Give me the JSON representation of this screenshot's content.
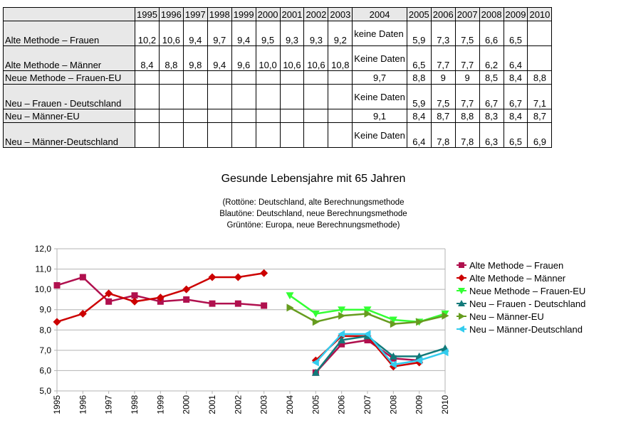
{
  "table": {
    "years": [
      "1995",
      "1996",
      "1997",
      "1998",
      "1999",
      "2000",
      "2001",
      "2002",
      "2003",
      "2004",
      "2005",
      "2006",
      "2007",
      "2008",
      "2009",
      "2010"
    ],
    "rows": [
      {
        "label": "Alte Methode – Frauen",
        "cells": [
          "10,2",
          "10,6",
          "9,4",
          "9,7",
          "9,4",
          "9,5",
          "9,3",
          "9,3",
          "9,2",
          "keine Daten",
          "5,9",
          "7,3",
          "7,5",
          "6,6",
          "6,5",
          ""
        ]
      },
      {
        "label": "Alte Methode – Männer",
        "cells": [
          "8,4",
          "8,8",
          "9,8",
          "9,4",
          "9,6",
          "10,0",
          "10,6",
          "10,6",
          "10,8",
          "Keine Daten",
          "6,5",
          "7,7",
          "7,7",
          "6,2",
          "6,4",
          ""
        ]
      },
      {
        "label": "Neue Methode – Frauen-EU",
        "cells": [
          "",
          "",
          "",
          "",
          "",
          "",
          "",
          "",
          "",
          "9,7",
          "8,8",
          "9",
          "9",
          "8,5",
          "8,4",
          "8,8"
        ]
      },
      {
        "label": "Neu – Frauen - Deutschland",
        "cells": [
          "",
          "",
          "",
          "",
          "",
          "",
          "",
          "",
          "",
          "Keine Daten",
          "5,9",
          "7,5",
          "7,7",
          "6,7",
          "6,7",
          "7,1"
        ]
      },
      {
        "label": "Neu – Männer-EU",
        "cells": [
          "",
          "",
          "",
          "",
          "",
          "",
          "",
          "",
          "",
          "9,1",
          "8,4",
          "8,7",
          "8,8",
          "8,3",
          "8,4",
          "8,7"
        ]
      },
      {
        "label": "Neu – Männer-Deutschland",
        "cells": [
          "",
          "",
          "",
          "",
          "",
          "",
          "",
          "",
          "",
          "Keine Daten",
          "6,4",
          "7,8",
          "7,8",
          "6,3",
          "6,5",
          "6,9"
        ]
      }
    ]
  },
  "chart_data": {
    "type": "line",
    "title": "Gesunde Lebensjahre mit 65 Jahren",
    "subtitle_lines": [
      "(Rottöne: Deutschland, alte Berechnungsmethode",
      "Blautöne: Deutschland, neue Berechnungsmethode",
      "Grüntöne: Europa, neue Berechnungsmethode)"
    ],
    "x": [
      "1995",
      "1996",
      "1997",
      "1998",
      "1999",
      "2000",
      "2001",
      "2002",
      "2003",
      "2004",
      "2005",
      "2006",
      "2007",
      "2008",
      "2009",
      "2010"
    ],
    "ylim": [
      5.0,
      12.0
    ],
    "yticks": [
      "5,0",
      "6,0",
      "7,0",
      "8,0",
      "9,0",
      "10,0",
      "11,0",
      "12,0"
    ],
    "grid": true,
    "legend_position": "right",
    "series": [
      {
        "name": "Alte Methode – Frauen",
        "color": "#b0104e",
        "marker": "square",
        "values": [
          10.2,
          10.6,
          9.4,
          9.7,
          9.4,
          9.5,
          9.3,
          9.3,
          9.2,
          null,
          5.9,
          7.3,
          7.5,
          6.6,
          6.5,
          null
        ]
      },
      {
        "name": "Alte Methode – Männer",
        "color": "#cc0000",
        "marker": "diamond",
        "values": [
          8.4,
          8.8,
          9.8,
          9.4,
          9.6,
          10.0,
          10.6,
          10.6,
          10.8,
          null,
          6.5,
          7.7,
          7.7,
          6.2,
          6.4,
          null
        ]
      },
      {
        "name": "Neue Methode – Frauen-EU",
        "color": "#33ff33",
        "marker": "triangle-down",
        "values": [
          null,
          null,
          null,
          null,
          null,
          null,
          null,
          null,
          null,
          9.7,
          8.8,
          9,
          9,
          8.5,
          8.4,
          8.8
        ]
      },
      {
        "name": "Neu – Frauen - Deutschland",
        "color": "#127a7a",
        "marker": "triangle-up",
        "values": [
          null,
          null,
          null,
          null,
          null,
          null,
          null,
          null,
          null,
          null,
          5.9,
          7.5,
          7.7,
          6.7,
          6.7,
          7.1
        ]
      },
      {
        "name": "Neu – Männer-EU",
        "color": "#669c1f",
        "marker": "triangle-right",
        "values": [
          null,
          null,
          null,
          null,
          null,
          null,
          null,
          null,
          null,
          9.1,
          8.4,
          8.7,
          8.8,
          8.3,
          8.4,
          8.7
        ]
      },
      {
        "name": "Neu – Männer-Deutschland",
        "color": "#33ccee",
        "marker": "triangle-left",
        "values": [
          null,
          null,
          null,
          null,
          null,
          null,
          null,
          null,
          null,
          null,
          6.4,
          7.8,
          7.8,
          6.3,
          6.5,
          6.9
        ]
      }
    ]
  }
}
